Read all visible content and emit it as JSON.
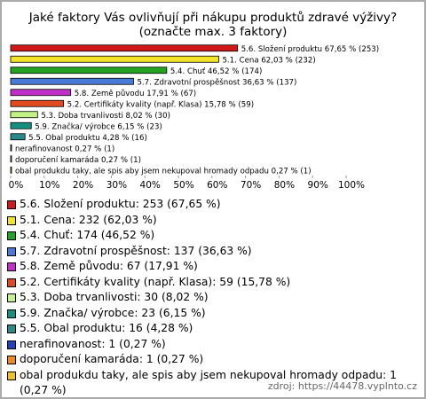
{
  "chart_data": {
    "type": "bar",
    "orientation": "horizontal",
    "title": "Jaké faktory Vás ovlivňují při nákupu produktů zdravé výživy?",
    "subtitle": "(označte max. 3 faktory)",
    "values": [
      67.65,
      62.03,
      46.52,
      36.63,
      17.91,
      15.78,
      8.02,
      6.15,
      4.28,
      0.27,
      0.27,
      0.27
    ],
    "value_labels": [
      "5.6. Složení produktu 67,65 % (253)",
      "5.1. Cena 62,03 % (232)",
      "5.4. Chuť 46,52 % (174)",
      "5.7. Zdravotní prospěšnost 36,63 % (137)",
      "5.8. Země původu 17,91 % (67)",
      "5.2. Certifikáty kvality (např. Klasa) 15,78 % (59)",
      "5.3. Doba trvanlivosti 8,02 % (30)",
      "5.9. Značka/ výrobce 6,15 % (23)",
      "5.5. Obal produktu 4,28 % (16)",
      "nerafinovanost 0,27 % (1)",
      "doporučení kamaráda 0,27 % (1)",
      "obal produkdu taky, ale spis aby jsem nekupoval hromady odpadu 0,27 % (1)"
    ],
    "legend_labels": [
      "5.6. Složení produktu: 253 (67,65 %)",
      "5.1. Cena: 232 (62,03 %)",
      "5.4. Chuť: 174 (46,52 %)",
      "5.7. Zdravotní prospěšnost: 137 (36,63 %)",
      "5.8. Země původu: 67 (17,91 %)",
      "5.2. Certifikáty kvality (např. Klasa): 59 (15,78 %)",
      "5.3. Doba trvanlivosti: 30 (8,02 %)",
      "5.9. Značka/ výrobce: 23 (6,15 %)",
      "5.5. Obal produktu: 16 (4,28 %)",
      "nerafinovanost: 1 (0,27 %)",
      "doporučení kamaráda: 1 (0,27 %)",
      "obal produkdu taky, ale spis aby jsem nekupoval hromady odpadu: 1 (0,27 %)"
    ],
    "colors": [
      "#d01818",
      "#f2e428",
      "#22a422",
      "#4a7ad8",
      "#c030c8",
      "#e04a1e",
      "#c4f288",
      "#149080",
      "#2a8a8a",
      "#2040c0",
      "#f08a20",
      "#f0c020"
    ],
    "xlim": [
      0,
      100
    ],
    "xticks": [
      {
        "value": 0,
        "label": "0%"
      },
      {
        "value": 10,
        "label": "10%"
      },
      {
        "value": 20,
        "label": "20%"
      },
      {
        "value": 30,
        "label": "30%"
      },
      {
        "value": 40,
        "label": "40%"
      },
      {
        "value": 50,
        "label": "50%"
      },
      {
        "value": 60,
        "label": "60%"
      },
      {
        "value": 70,
        "label": "70%"
      },
      {
        "value": 80,
        "label": "80%"
      },
      {
        "value": 90,
        "label": "90%"
      },
      {
        "value": 100,
        "label": "100%"
      }
    ],
    "source": "zdroj: https://44478.vyplnto.cz"
  }
}
